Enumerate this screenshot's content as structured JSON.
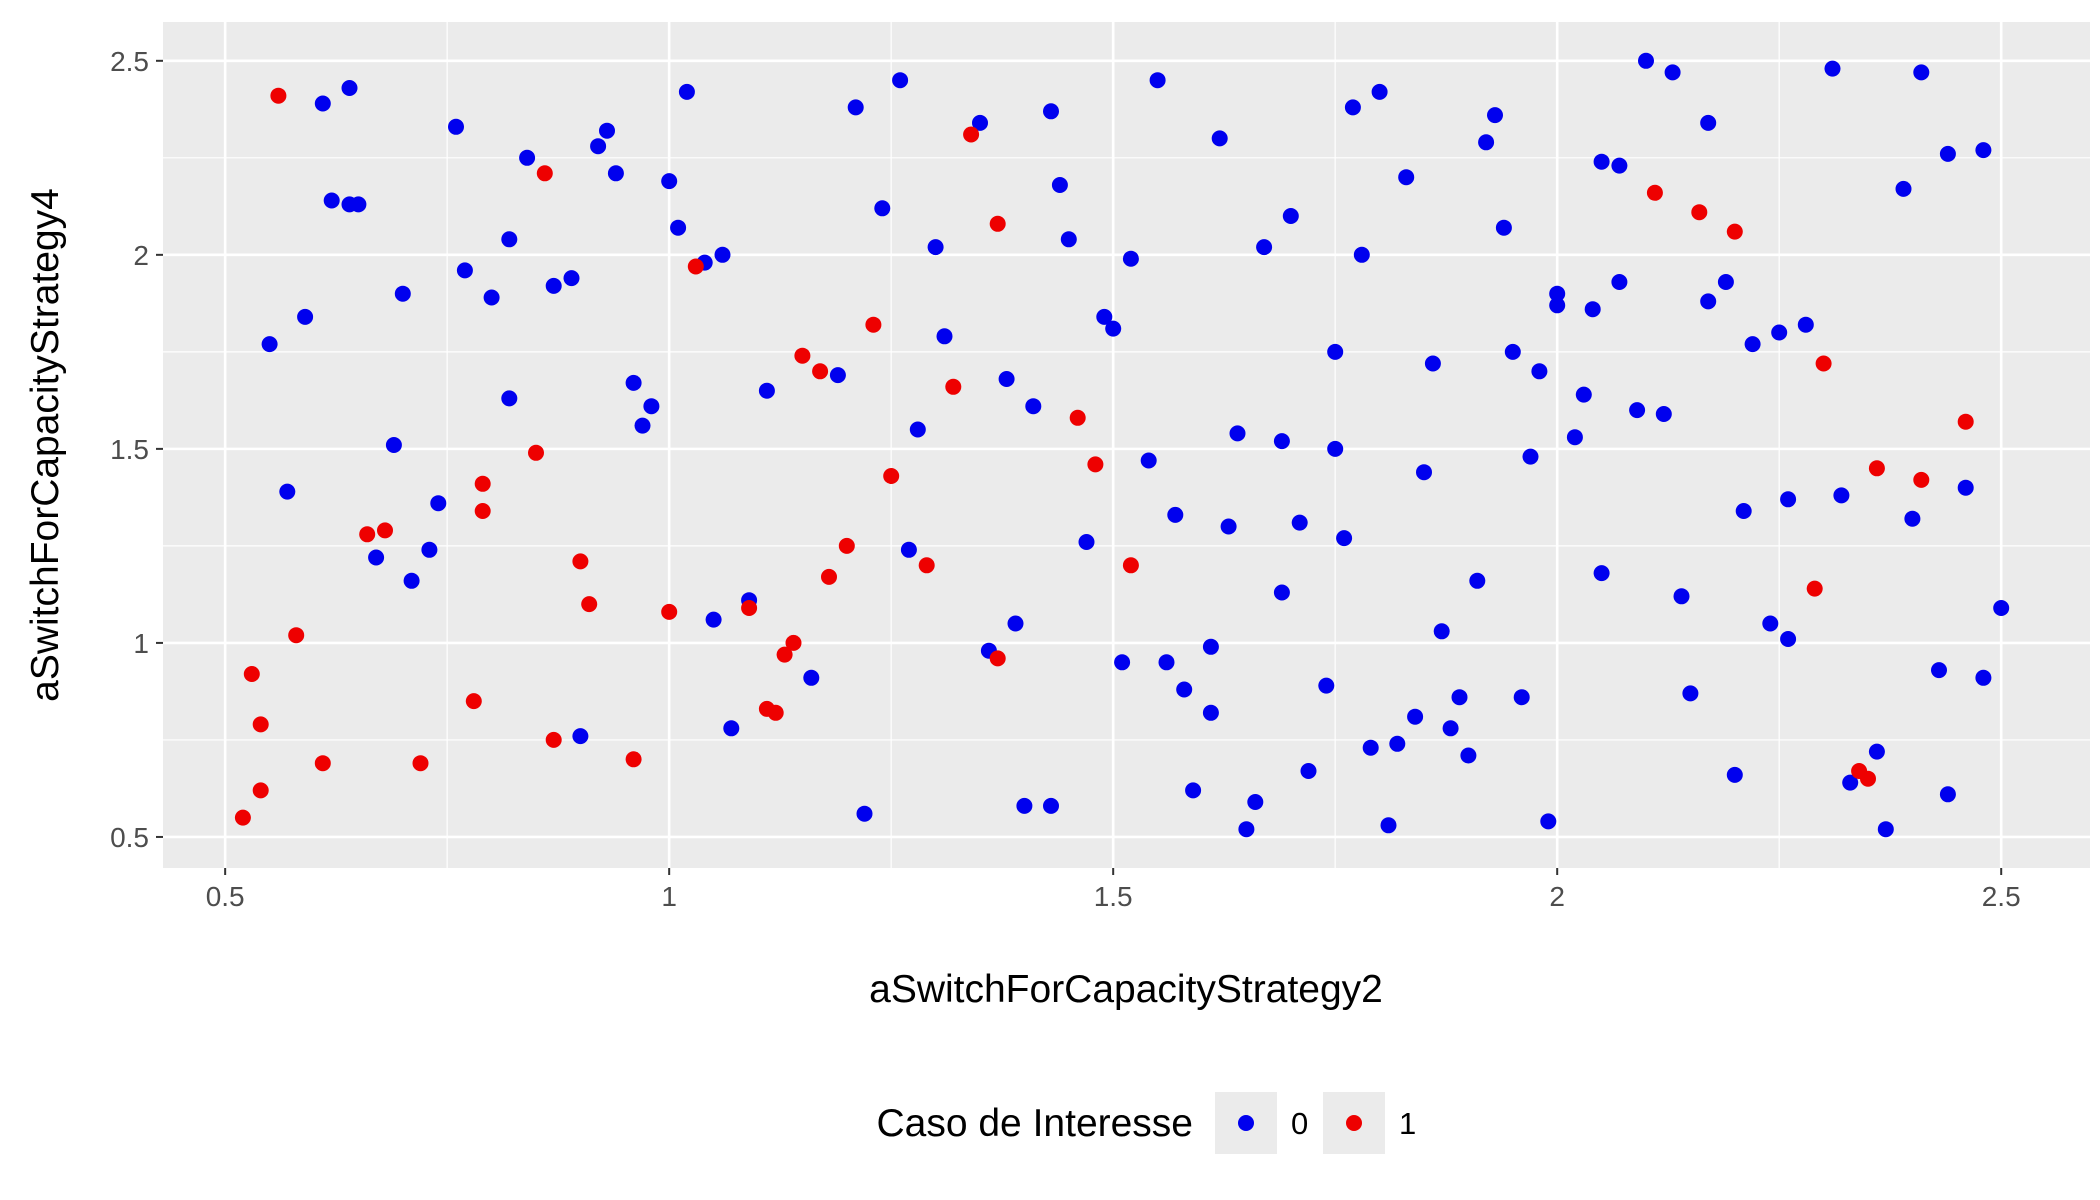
{
  "chart_data": {
    "type": "scatter",
    "title": "",
    "xlabel": "aSwitchForCapacityStrategy2",
    "ylabel": "aSwitchForCapacityStrategy4",
    "xlim": [
      0.43,
      2.6
    ],
    "ylim": [
      0.42,
      2.6
    ],
    "x_ticks": [
      0.5,
      1,
      1.5,
      2,
      2.5
    ],
    "x_tick_labels": [
      "0.5",
      "1",
      "1.5",
      "2",
      "2.5"
    ],
    "y_ticks": [
      0.5,
      1,
      1.5,
      2,
      2.5
    ],
    "y_tick_labels": [
      "0.5",
      "1",
      "1.5",
      "2",
      "2.5"
    ],
    "grid": true,
    "legend": {
      "title": "Caso de Interesse",
      "position": "bottom",
      "entries": [
        {
          "label": "0",
          "color": "#0000ee"
        },
        {
          "label": "1",
          "color": "#ee0000"
        }
      ]
    },
    "series": [
      {
        "name": "0",
        "color": "#0000ee",
        "points": [
          [
            0.61,
            2.39
          ],
          [
            0.64,
            2.43
          ],
          [
            0.62,
            2.14
          ],
          [
            0.64,
            2.13
          ],
          [
            0.65,
            2.13
          ],
          [
            0.55,
            1.77
          ],
          [
            0.59,
            1.84
          ],
          [
            0.57,
            1.39
          ],
          [
            0.67,
            1.22
          ],
          [
            0.69,
            1.51
          ],
          [
            0.7,
            1.9
          ],
          [
            0.71,
            1.16
          ],
          [
            0.73,
            1.24
          ],
          [
            0.74,
            1.36
          ],
          [
            0.76,
            2.33
          ],
          [
            0.77,
            1.96
          ],
          [
            0.8,
            1.89
          ],
          [
            0.82,
            2.04
          ],
          [
            0.82,
            1.63
          ],
          [
            0.84,
            2.25
          ],
          [
            0.87,
            1.92
          ],
          [
            0.89,
            1.94
          ],
          [
            0.9,
            0.76
          ],
          [
            0.92,
            2.28
          ],
          [
            0.93,
            2.32
          ],
          [
            0.94,
            2.21
          ],
          [
            0.96,
            1.67
          ],
          [
            0.97,
            1.56
          ],
          [
            0.98,
            1.61
          ],
          [
            1.0,
            2.19
          ],
          [
            1.01,
            2.07
          ],
          [
            1.02,
            2.42
          ],
          [
            1.04,
            1.98
          ],
          [
            1.05,
            1.06
          ],
          [
            1.06,
            2.0
          ],
          [
            1.07,
            0.78
          ],
          [
            1.09,
            1.11
          ],
          [
            1.11,
            1.65
          ],
          [
            1.16,
            0.91
          ],
          [
            1.19,
            1.69
          ],
          [
            1.21,
            2.38
          ],
          [
            1.22,
            0.56
          ],
          [
            1.24,
            2.12
          ],
          [
            1.26,
            2.45
          ],
          [
            1.27,
            1.24
          ],
          [
            1.28,
            1.55
          ],
          [
            1.3,
            2.02
          ],
          [
            1.31,
            1.79
          ],
          [
            1.35,
            2.34
          ],
          [
            1.36,
            0.98
          ],
          [
            1.38,
            1.68
          ],
          [
            1.4,
            0.58
          ],
          [
            1.39,
            1.05
          ],
          [
            1.41,
            1.61
          ],
          [
            1.43,
            2.37
          ],
          [
            1.43,
            0.58
          ],
          [
            1.44,
            2.18
          ],
          [
            1.45,
            2.04
          ],
          [
            1.47,
            1.26
          ],
          [
            1.49,
            1.84
          ],
          [
            1.5,
            1.81
          ],
          [
            1.51,
            0.95
          ],
          [
            1.52,
            1.99
          ],
          [
            1.54,
            1.47
          ],
          [
            1.55,
            2.45
          ],
          [
            1.56,
            0.95
          ],
          [
            1.57,
            1.33
          ],
          [
            1.58,
            0.88
          ],
          [
            1.59,
            0.62
          ],
          [
            1.61,
            0.99
          ],
          [
            1.61,
            0.82
          ],
          [
            1.62,
            2.3
          ],
          [
            1.63,
            1.3
          ],
          [
            1.64,
            1.54
          ],
          [
            1.65,
            0.52
          ],
          [
            1.66,
            0.59
          ],
          [
            1.67,
            2.02
          ],
          [
            1.69,
            1.52
          ],
          [
            1.69,
            1.13
          ],
          [
            1.7,
            2.1
          ],
          [
            1.71,
            1.31
          ],
          [
            1.72,
            0.67
          ],
          [
            1.74,
            0.89
          ],
          [
            1.75,
            1.75
          ],
          [
            1.75,
            1.5
          ],
          [
            1.76,
            1.27
          ],
          [
            1.77,
            2.38
          ],
          [
            1.78,
            2.0
          ],
          [
            1.79,
            0.73
          ],
          [
            1.8,
            2.42
          ],
          [
            1.81,
            0.53
          ],
          [
            1.82,
            0.74
          ],
          [
            1.83,
            2.2
          ],
          [
            1.84,
            0.81
          ],
          [
            1.85,
            1.44
          ],
          [
            1.86,
            1.72
          ],
          [
            1.87,
            1.03
          ],
          [
            1.88,
            0.78
          ],
          [
            1.89,
            0.86
          ],
          [
            1.9,
            0.71
          ],
          [
            1.91,
            1.16
          ],
          [
            1.92,
            2.29
          ],
          [
            1.93,
            2.36
          ],
          [
            1.94,
            2.07
          ],
          [
            1.95,
            1.75
          ],
          [
            1.96,
            0.86
          ],
          [
            1.97,
            1.48
          ],
          [
            1.98,
            1.7
          ],
          [
            1.99,
            0.54
          ],
          [
            2.0,
            1.9
          ],
          [
            2.0,
            1.87
          ],
          [
            2.02,
            1.53
          ],
          [
            2.03,
            1.64
          ],
          [
            2.04,
            1.86
          ],
          [
            2.05,
            1.18
          ],
          [
            2.05,
            2.24
          ],
          [
            2.07,
            2.23
          ],
          [
            2.07,
            1.93
          ],
          [
            2.09,
            1.6
          ],
          [
            2.1,
            2.5
          ],
          [
            2.12,
            1.59
          ],
          [
            2.13,
            2.47
          ],
          [
            2.14,
            1.12
          ],
          [
            2.15,
            0.87
          ],
          [
            2.17,
            2.34
          ],
          [
            2.17,
            1.88
          ],
          [
            2.19,
            1.93
          ],
          [
            2.2,
            0.66
          ],
          [
            2.21,
            1.34
          ],
          [
            2.22,
            1.77
          ],
          [
            2.24,
            1.05
          ],
          [
            2.25,
            1.8
          ],
          [
            2.26,
            1.01
          ],
          [
            2.26,
            1.37
          ],
          [
            2.28,
            1.82
          ],
          [
            2.31,
            2.48
          ],
          [
            2.32,
            1.38
          ],
          [
            2.33,
            0.64
          ],
          [
            2.36,
            0.72
          ],
          [
            2.37,
            0.52
          ],
          [
            2.39,
            2.17
          ],
          [
            2.4,
            1.32
          ],
          [
            2.41,
            2.47
          ],
          [
            2.43,
            0.93
          ],
          [
            2.44,
            2.26
          ],
          [
            2.44,
            0.61
          ],
          [
            2.46,
            1.4
          ],
          [
            2.48,
            0.91
          ],
          [
            2.48,
            2.27
          ],
          [
            2.5,
            1.09
          ]
        ]
      },
      {
        "name": "1",
        "color": "#ee0000",
        "points": [
          [
            0.56,
            2.41
          ],
          [
            0.52,
            0.55
          ],
          [
            0.53,
            0.92
          ],
          [
            0.54,
            0.62
          ],
          [
            0.54,
            0.79
          ],
          [
            0.58,
            1.02
          ],
          [
            0.61,
            0.69
          ],
          [
            0.66,
            1.28
          ],
          [
            0.68,
            1.29
          ],
          [
            0.72,
            0.69
          ],
          [
            0.78,
            0.85
          ],
          [
            0.79,
            1.41
          ],
          [
            0.79,
            1.34
          ],
          [
            0.85,
            1.49
          ],
          [
            0.86,
            2.21
          ],
          [
            0.87,
            0.75
          ],
          [
            0.9,
            1.21
          ],
          [
            0.91,
            1.1
          ],
          [
            0.96,
            0.7
          ],
          [
            1.0,
            1.08
          ],
          [
            1.03,
            1.97
          ],
          [
            1.09,
            1.09
          ],
          [
            1.11,
            0.83
          ],
          [
            1.12,
            0.82
          ],
          [
            1.13,
            0.97
          ],
          [
            1.14,
            1.0
          ],
          [
            1.15,
            1.74
          ],
          [
            1.17,
            1.7
          ],
          [
            1.18,
            1.17
          ],
          [
            1.2,
            1.25
          ],
          [
            1.23,
            1.82
          ],
          [
            1.25,
            1.43
          ],
          [
            1.29,
            1.2
          ],
          [
            1.32,
            1.66
          ],
          [
            1.34,
            2.31
          ],
          [
            1.37,
            0.96
          ],
          [
            1.37,
            2.08
          ],
          [
            1.46,
            1.58
          ],
          [
            1.48,
            1.46
          ],
          [
            1.52,
            1.2
          ],
          [
            2.11,
            2.16
          ],
          [
            2.16,
            2.11
          ],
          [
            2.2,
            2.06
          ],
          [
            2.29,
            1.14
          ],
          [
            2.3,
            1.72
          ],
          [
            2.34,
            0.67
          ],
          [
            2.35,
            0.65
          ],
          [
            2.36,
            1.45
          ],
          [
            2.41,
            1.42
          ],
          [
            2.46,
            1.57
          ]
        ]
      }
    ]
  }
}
